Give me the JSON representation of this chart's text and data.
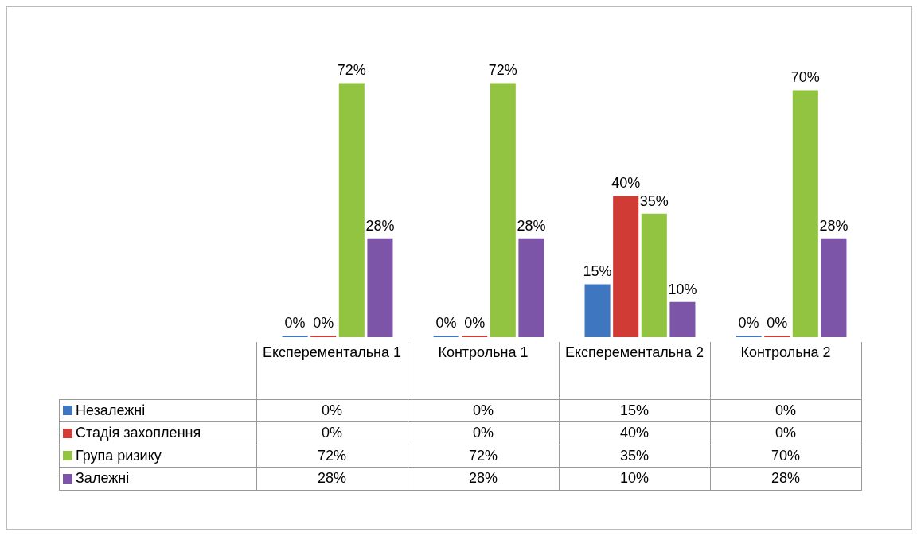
{
  "chart_data": {
    "type": "bar",
    "categories": [
      "Експерементальна 1",
      "Контрольна 1",
      "Експерементальна 2",
      "Контрольна 2"
    ],
    "series": [
      {
        "name": "Незалежні",
        "color": "#3f76c0",
        "values": [
          0,
          0,
          15,
          0
        ],
        "value_labels": [
          "0%",
          "0%",
          "15%",
          "0%"
        ]
      },
      {
        "name": "Стадія захоплення",
        "color": "#d13b35",
        "values": [
          0,
          0,
          40,
          0
        ],
        "value_labels": [
          "0%",
          "0%",
          "40%",
          "0%"
        ]
      },
      {
        "name": "Група ризику",
        "color": "#93c441",
        "values": [
          72,
          72,
          35,
          70
        ],
        "value_labels": [
          "72%",
          "72%",
          "35%",
          "70%"
        ]
      },
      {
        "name": "Залежні",
        "color": "#7d55a8",
        "values": [
          28,
          28,
          10,
          28
        ],
        "value_labels": [
          "28%",
          "28%",
          "10%",
          "28%"
        ]
      }
    ],
    "legend": "bottom left",
    "grid": false
  }
}
